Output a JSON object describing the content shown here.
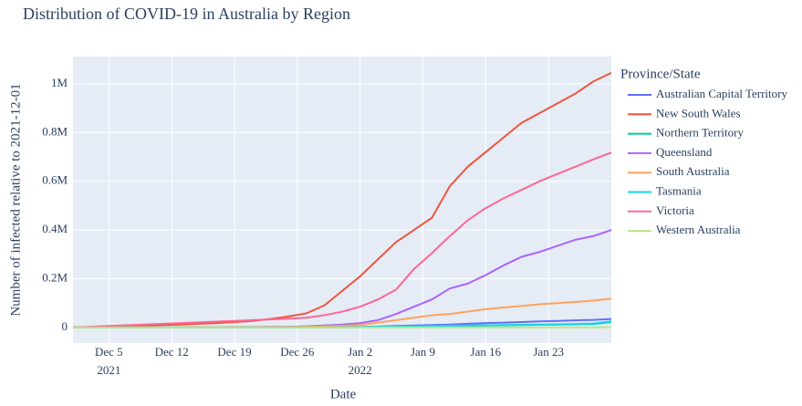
{
  "chart_data": {
    "type": "line",
    "title": "Distribution of COVID-19 in Australia by Region",
    "x_label": "Date",
    "y_label": "Number of infected relative to 2021-12-01",
    "legend_title": "Province/State",
    "legend_position": "right",
    "grid": true,
    "x": [
      "2021-12-01",
      "2021-12-03",
      "2021-12-05",
      "2021-12-07",
      "2021-12-09",
      "2021-12-11",
      "2021-12-13",
      "2021-12-15",
      "2021-12-17",
      "2021-12-19",
      "2021-12-21",
      "2021-12-23",
      "2021-12-25",
      "2021-12-27",
      "2021-12-29",
      "2021-12-31",
      "2022-01-02",
      "2022-01-04",
      "2022-01-06",
      "2022-01-08",
      "2022-01-10",
      "2022-01-12",
      "2022-01-14",
      "2022-01-16",
      "2022-01-18",
      "2022-01-20",
      "2022-01-22",
      "2022-01-24",
      "2022-01-26",
      "2022-01-28",
      "2022-01-30"
    ],
    "xlim": [
      "2021-12-01",
      "2022-01-30"
    ],
    "xticks": [
      {
        "value": "2021-12-05",
        "label": "Dec 5\n2021"
      },
      {
        "value": "2021-12-12",
        "label": "Dec 12"
      },
      {
        "value": "2021-12-19",
        "label": "Dec 19"
      },
      {
        "value": "2021-12-26",
        "label": "Dec 26"
      },
      {
        "value": "2022-01-02",
        "label": "Jan 2\n2022"
      },
      {
        "value": "2022-01-09",
        "label": "Jan 9"
      },
      {
        "value": "2022-01-16",
        "label": "Jan 16"
      },
      {
        "value": "2022-01-23",
        "label": "Jan 23"
      }
    ],
    "ylim": [
      -64000,
      1112000
    ],
    "yticks": [
      0,
      {
        "value": 200000,
        "label": "0.2M"
      },
      {
        "value": 400000,
        "label": "0.4M"
      },
      {
        "value": 600000,
        "label": "0.6M"
      },
      {
        "value": 800000,
        "label": "0.8M"
      },
      {
        "value": 1000000,
        "label": "1M"
      }
    ],
    "series": [
      {
        "name": "Australian Capital Territory",
        "color": "#636efa",
        "values": [
          0,
          0,
          0,
          0,
          0,
          0,
          0,
          0,
          0,
          0,
          0,
          0,
          0,
          1000,
          1000,
          1000,
          2000,
          4000,
          6000,
          8000,
          10000,
          12000,
          15000,
          18000,
          20000,
          22000,
          25000,
          27000,
          29000,
          31000,
          35000
        ]
      },
      {
        "name": "New South Wales",
        "color": "#ef553b",
        "values": [
          0,
          2000,
          4000,
          6000,
          8000,
          10000,
          12000,
          15000,
          18000,
          22000,
          27000,
          35000,
          45000,
          58000,
          90000,
          150000,
          210000,
          280000,
          350000,
          400000,
          450000,
          580000,
          660000,
          720000,
          780000,
          840000,
          880000,
          920000,
          960000,
          1010000,
          1045000
        ]
      },
      {
        "name": "Northern Territory",
        "color": "#00cc96",
        "values": [
          0,
          0,
          0,
          0,
          0,
          0,
          0,
          0,
          0,
          0,
          0,
          0,
          0,
          0,
          0,
          0,
          1000,
          2000,
          3000,
          4000,
          5000,
          6000,
          7000,
          8000,
          9000,
          10000,
          11000,
          12000,
          13000,
          14000,
          22000
        ]
      },
      {
        "name": "Queensland",
        "color": "#ab63fa",
        "values": [
          0,
          0,
          0,
          0,
          0,
          0,
          0,
          1000,
          1000,
          2000,
          2000,
          3000,
          3000,
          5000,
          8000,
          12000,
          18000,
          30000,
          55000,
          85000,
          115000,
          160000,
          180000,
          215000,
          255000,
          290000,
          310000,
          335000,
          360000,
          375000,
          400000
        ]
      },
      {
        "name": "South Australia",
        "color": "#ffa15a",
        "values": [
          0,
          0,
          0,
          0,
          0,
          0,
          0,
          0,
          1000,
          1000,
          1000,
          2000,
          2000,
          3000,
          5000,
          7000,
          10000,
          20000,
          30000,
          40000,
          50000,
          55000,
          65000,
          75000,
          82000,
          88000,
          95000,
          100000,
          105000,
          110000,
          118000
        ]
      },
      {
        "name": "Tasmania",
        "color": "#19d3f3",
        "values": [
          0,
          0,
          0,
          0,
          0,
          0,
          0,
          0,
          0,
          0,
          0,
          0,
          0,
          0,
          0,
          1000,
          2000,
          3000,
          4000,
          5000,
          6000,
          7000,
          8000,
          9000,
          10000,
          11000,
          12000,
          13000,
          14000,
          16000,
          25000
        ]
      },
      {
        "name": "Victoria",
        "color": "#ff6692",
        "values": [
          0,
          3000,
          6000,
          9000,
          12000,
          15000,
          18000,
          21000,
          24000,
          27000,
          30000,
          33000,
          36000,
          40000,
          50000,
          65000,
          85000,
          115000,
          155000,
          240000,
          305000,
          375000,
          440000,
          490000,
          530000,
          565000,
          600000,
          630000,
          660000,
          690000,
          718000
        ]
      },
      {
        "name": "Western Australia",
        "color": "#b6e880",
        "values": [
          0,
          0,
          0,
          0,
          0,
          0,
          0,
          0,
          0,
          0,
          0,
          0,
          0,
          0,
          0,
          0,
          0,
          0,
          0,
          0,
          0,
          0,
          0,
          0,
          0,
          0,
          0,
          0,
          0,
          0,
          1000
        ]
      }
    ]
  }
}
